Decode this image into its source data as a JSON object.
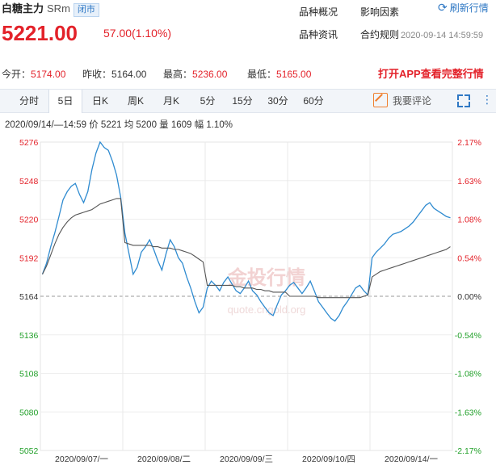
{
  "header": {
    "name": "白糖主力",
    "code": "SRm",
    "status_badge": "闭市",
    "price": "5221.00",
    "change": "57.00(1.10%)",
    "links": [
      "品种概况",
      "影响因素",
      "品种资讯",
      "合约规则"
    ],
    "refresh_label": "刷新行情",
    "timestamp": "2020-09-14 14:59:59"
  },
  "quote_bar": {
    "items": [
      {
        "label": "今开：",
        "value": "5174.00"
      },
      {
        "label": "昨收：",
        "value": "5164.00"
      },
      {
        "label": "最高：",
        "value": "5236.00"
      },
      {
        "label": "最低：",
        "value": "5165.00"
      }
    ],
    "promo": "打开APP查看完整行情"
  },
  "tabs": {
    "items": [
      "分时",
      "5日",
      "日K",
      "周K",
      "月K",
      "5分",
      "15分",
      "30分",
      "60分"
    ],
    "active": "5日",
    "comment_label": "我要评论"
  },
  "info_line": "2020/09/14/—14:59  价 5221  均 5200  量 1609  幅 1.10%",
  "watermark": "金投行情 quote.cngold.org",
  "colors": {
    "up": "#e3222a",
    "down": "#22a02a",
    "price_line": "#2f8bd0",
    "avg_line": "#555555",
    "accent": "#2f78c4"
  },
  "chart_data": {
    "type": "line",
    "ylim": [
      5052,
      5276
    ],
    "y_ticks_left": [
      "5276",
      "5248",
      "5220",
      "5192",
      "5164",
      "5136",
      "5108",
      "5080",
      "5052"
    ],
    "y_ticks_right": [
      "2.17%",
      "1.63%",
      "1.08%",
      "0.54%",
      "0.00%",
      "-0.54%",
      "-1.08%",
      "-1.63%",
      "-2.17%"
    ],
    "reference": 5164,
    "x_labels": [
      "2020/09/07/一",
      "2020/09/08/二",
      "2020/09/09/三",
      "2020/09/10/四",
      "2020/09/14/一"
    ],
    "points_per_day": 20,
    "series": [
      {
        "values": [
          5180,
          5188,
          5200,
          5210,
          5222,
          5234,
          5240,
          5244,
          5246,
          5238,
          5232,
          5240,
          5256,
          5268,
          5276,
          5272,
          5270,
          5262,
          5252,
          5236,
          5210,
          5195,
          5180,
          5185,
          5196,
          5200,
          5205,
          5198,
          5190,
          5183,
          5195,
          5205,
          5200,
          5192,
          5188,
          5178,
          5170,
          5160,
          5152,
          5156,
          5170,
          5175,
          5172,
          5168,
          5174,
          5178,
          5173,
          5168,
          5166,
          5170,
          5175,
          5168,
          5165,
          5160,
          5156,
          5152,
          5150,
          5158,
          5165,
          5168,
          5172,
          5174,
          5170,
          5166,
          5170,
          5175,
          5168,
          5160,
          5156,
          5152,
          5148,
          5146,
          5150,
          5156,
          5160,
          5165,
          5170,
          5172,
          5168,
          5165,
          5192,
          5196,
          5199,
          5202,
          5206,
          5209,
          5210,
          5211,
          5213,
          5215,
          5218,
          5222,
          5226,
          5230,
          5232,
          5228,
          5226,
          5224,
          5222,
          5221
        ]
      },
      {
        "values": [
          5180,
          5186,
          5194,
          5202,
          5209,
          5214,
          5218,
          5221,
          5223,
          5224,
          5225,
          5226,
          5227,
          5229,
          5231,
          5232,
          5233,
          5234,
          5235,
          5235,
          5203,
          5202,
          5201,
          5201,
          5201,
          5201,
          5201,
          5200,
          5200,
          5199,
          5199,
          5199,
          5198,
          5198,
          5197,
          5196,
          5195,
          5193,
          5191,
          5189,
          5172,
          5172,
          5172,
          5172,
          5172,
          5172,
          5172,
          5171,
          5171,
          5170,
          5170,
          5170,
          5169,
          5169,
          5168,
          5168,
          5167,
          5167,
          5167,
          5167,
          5164,
          5164,
          5164,
          5164,
          5164,
          5164,
          5164,
          5163,
          5163,
          5163,
          5163,
          5163,
          5163,
          5163,
          5163,
          5163,
          5163,
          5163,
          5164,
          5165,
          5178,
          5180,
          5182,
          5183,
          5184,
          5185,
          5186,
          5187,
          5188,
          5189,
          5190,
          5191,
          5192,
          5193,
          5194,
          5195,
          5196,
          5197,
          5198,
          5200
        ]
      }
    ]
  }
}
